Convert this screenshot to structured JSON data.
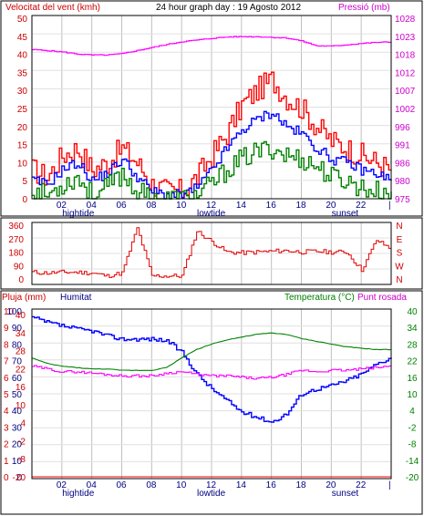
{
  "colors": {
    "wind_max": "#ff0000",
    "wind_avg": "#0000ff",
    "wind_min": "#008000",
    "pressure": "#ff00ff",
    "direction": "#e00000",
    "rain": "#ff0000",
    "humidity": "#0000ff",
    "temperature": "#008000",
    "dewpoint": "#ff00ff",
    "grid": "#c0c0c0",
    "text_red": "#cc0000",
    "text_blue": "#000080",
    "text_green": "#008000",
    "text_magenta": "#cc00cc",
    "text_black": "#000000"
  },
  "chart_data": [
    {
      "type": "line",
      "title": "24 hour graph day : 19 Agosto 2012",
      "left_label": "Velocitat del vent (kmh)",
      "right_label": "Pressió (mb)",
      "x_ticks": [
        "02",
        "04",
        "06",
        "08",
        "10",
        "12",
        "14",
        "16",
        "18",
        "20",
        "22",
        "|"
      ],
      "x_markers": [
        "hightide",
        "lowtide",
        "sunset"
      ],
      "y_left": {
        "min": 0,
        "max": 50,
        "ticks": [
          "0",
          "5",
          "10",
          "15",
          "20",
          "25",
          "30",
          "35",
          "40",
          "45",
          "50"
        ]
      },
      "y_right": {
        "min": 975,
        "max": 1028,
        "ticks": [
          "975",
          "980",
          "986",
          "991",
          "996",
          "1002",
          "1007",
          "1012",
          "1018",
          "1023",
          "1028"
        ]
      },
      "x": [
        0,
        1,
        2,
        3,
        4,
        5,
        6,
        7,
        8,
        9,
        10,
        11,
        12,
        13,
        14,
        15,
        16,
        17,
        18,
        19,
        20,
        21,
        22,
        23,
        24
      ],
      "series": [
        {
          "key": "wind_max",
          "axis": "left",
          "values": [
            8,
            6,
            12,
            14,
            8,
            10,
            14,
            10,
            4,
            2,
            2,
            6,
            12,
            18,
            26,
            30,
            33,
            28,
            25,
            20,
            16,
            14,
            12,
            10,
            8
          ]
        },
        {
          "key": "wind_avg",
          "axis": "left",
          "values": [
            5,
            4,
            8,
            10,
            5,
            7,
            11,
            6,
            2,
            1,
            1,
            3,
            8,
            14,
            19,
            22,
            24,
            20,
            18,
            14,
            11,
            10,
            8,
            7,
            5
          ]
        },
        {
          "key": "wind_min",
          "axis": "left",
          "values": [
            2,
            1,
            4,
            6,
            1,
            3,
            7,
            2,
            0,
            0,
            0,
            1,
            4,
            8,
            11,
            13,
            14,
            12,
            11,
            9,
            6,
            5,
            3,
            2,
            2
          ]
        },
        {
          "key": "pressure",
          "axis": "right",
          "values": [
            1018.8,
            1018.5,
            1018.1,
            1017.5,
            1017.2,
            1017.2,
            1017.6,
            1018.5,
            1019.4,
            1020.3,
            1021.1,
            1021.6,
            1022.1,
            1022.5,
            1022.6,
            1022.6,
            1022.4,
            1022.2,
            1021.3,
            1019.9,
            1019.8,
            1020.2,
            1020.6,
            1020.9,
            1021.0
          ]
        }
      ]
    },
    {
      "type": "line",
      "y_left": {
        "min": 0,
        "max": 360,
        "ticks": [
          "0",
          "90",
          "180",
          "270",
          "360"
        ]
      },
      "y_right_labels": [
        "N",
        "W",
        "S",
        "E",
        "N"
      ],
      "x": [
        0,
        1,
        2,
        3,
        4,
        5,
        6,
        7,
        8,
        9,
        10,
        11,
        12,
        13,
        14,
        15,
        16,
        17,
        18,
        19,
        20,
        21,
        22,
        23,
        24
      ],
      "series": [
        {
          "key": "direction",
          "values": [
            45,
            40,
            45,
            45,
            40,
            20,
            40,
            340,
            20,
            20,
            20,
            320,
            250,
            180,
            175,
            180,
            185,
            190,
            180,
            185,
            180,
            180,
            60,
            260,
            200
          ]
        }
      ]
    },
    {
      "type": "line",
      "labels": {
        "rain": "Pluja (mm)",
        "humidity": "Humitat",
        "temperature": "Temperatura (°C)",
        "dewpoint": "Punt rosada"
      },
      "x_ticks": [
        "02",
        "04",
        "06",
        "08",
        "10",
        "12",
        "14",
        "16",
        "18",
        "20",
        "22",
        "|"
      ],
      "x_markers": [
        "hightide",
        "lowtide",
        "sunset"
      ],
      "y_rain": {
        "min": 0,
        "max": 10,
        "ticks": [
          "0",
          "1",
          "2",
          "3",
          "4",
          "5",
          "6",
          "7",
          "8",
          "9",
          "10"
        ]
      },
      "y_humidity": {
        "min": 0,
        "max": 100,
        "ticks": [
          "0",
          "10",
          "20",
          "30",
          "40",
          "50",
          "60",
          "70",
          "80",
          "90",
          "100"
        ]
      },
      "y_temp_left": {
        "min": -20,
        "max": 40,
        "ticks": [
          "-20",
          "-8",
          "-2",
          "4",
          "10",
          "16",
          "22",
          "28",
          "34",
          "40"
        ]
      },
      "y_temp_right": {
        "min": -20,
        "max": 40,
        "ticks": [
          "-20",
          "-14",
          "-8",
          "-2",
          "4",
          "10",
          "16",
          "22",
          "28",
          "34",
          "40"
        ]
      },
      "x": [
        0,
        1,
        2,
        3,
        4,
        5,
        6,
        7,
        8,
        9,
        10,
        11,
        12,
        13,
        14,
        15,
        16,
        17,
        18,
        19,
        20,
        21,
        22,
        23,
        24
      ],
      "series": [
        {
          "key": "rain",
          "axis": "rain",
          "values": [
            0,
            0,
            0,
            0,
            0,
            0,
            0,
            0,
            0,
            0,
            0,
            0,
            0,
            0,
            0,
            0,
            0,
            0,
            0,
            0,
            0,
            0,
            0,
            0,
            0
          ]
        },
        {
          "key": "humidity",
          "axis": "humidity",
          "values": [
            96,
            93,
            91,
            89,
            88,
            85,
            83,
            83,
            83,
            82,
            75,
            62,
            53,
            46,
            39,
            36,
            33,
            38,
            50,
            53,
            55,
            58,
            62,
            68,
            72
          ]
        },
        {
          "key": "temperature",
          "axis": "temp",
          "values": [
            23,
            21,
            20,
            19.5,
            19,
            19,
            18.5,
            18.5,
            18.5,
            19.5,
            23,
            26,
            28,
            29.5,
            30.5,
            31.5,
            32,
            31.5,
            30,
            29,
            28,
            27,
            26.5,
            26,
            26
          ]
        },
        {
          "key": "dewpoint",
          "axis": "temp",
          "values": [
            20,
            19,
            18,
            18,
            17.5,
            17,
            16.5,
            16.5,
            16.5,
            17.5,
            18,
            17,
            16.5,
            16.5,
            16,
            15.5,
            16,
            17,
            18.5,
            18,
            18.5,
            18.5,
            19,
            19.5,
            20
          ]
        }
      ]
    }
  ]
}
